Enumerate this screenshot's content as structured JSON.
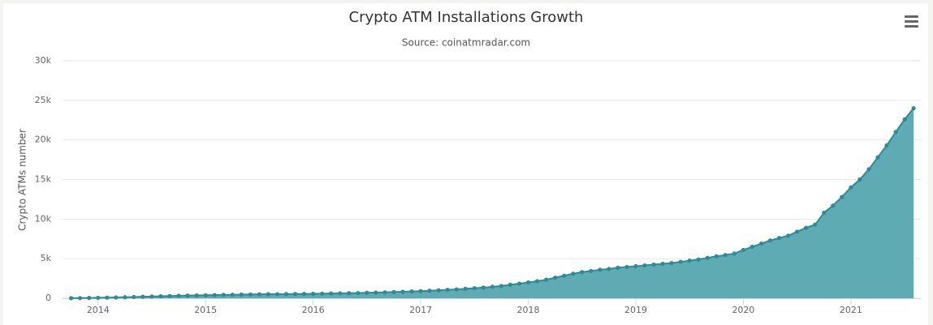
{
  "chart_data": {
    "type": "area",
    "title": "Crypto ATM Installations Growth",
    "subtitle": "Source: coinatmradar.com",
    "y_label": "Crypto ATMs number",
    "x": [
      2013.75,
      2013.833,
      2013.917,
      2014,
      2014.083,
      2014.167,
      2014.25,
      2014.333,
      2014.417,
      2014.5,
      2014.583,
      2014.667,
      2014.75,
      2014.833,
      2014.917,
      2015,
      2015.083,
      2015.167,
      2015.25,
      2015.333,
      2015.417,
      2015.5,
      2015.583,
      2015.667,
      2015.75,
      2015.833,
      2015.917,
      2016,
      2016.083,
      2016.167,
      2016.25,
      2016.333,
      2016.417,
      2016.5,
      2016.583,
      2016.667,
      2016.75,
      2016.833,
      2016.917,
      2017,
      2017.083,
      2017.167,
      2017.25,
      2017.333,
      2017.417,
      2017.5,
      2017.583,
      2017.667,
      2017.75,
      2017.833,
      2017.917,
      2018,
      2018.083,
      2018.167,
      2018.25,
      2018.333,
      2018.417,
      2018.5,
      2018.583,
      2018.667,
      2018.75,
      2018.833,
      2018.917,
      2019,
      2019.083,
      2019.167,
      2019.25,
      2019.333,
      2019.417,
      2019.5,
      2019.583,
      2019.667,
      2019.75,
      2019.833,
      2019.917,
      2020,
      2020.083,
      2020.167,
      2020.25,
      2020.333,
      2020.417,
      2020.5,
      2020.583,
      2020.667,
      2020.75,
      2020.833,
      2020.917,
      2021,
      2021.083,
      2021.167,
      2021.25,
      2021.333,
      2021.417,
      2021.5,
      2021.583
    ],
    "series": [
      {
        "name": "Crypto ATMs",
        "color": "#2e8b95",
        "fill": "#5eabb4",
        "values": [
          10,
          20,
          40,
          60,
          80,
          100,
          130,
          160,
          190,
          220,
          250,
          280,
          310,
          340,
          360,
          380,
          400,
          420,
          440,
          460,
          480,
          500,
          510,
          520,
          530,
          540,
          550,
          560,
          580,
          600,
          620,
          640,
          660,
          690,
          720,
          750,
          780,
          820,
          860,
          900,
          950,
          1000,
          1060,
          1120,
          1190,
          1270,
          1350,
          1450,
          1550,
          1700,
          1850,
          2000,
          2150,
          2350,
          2600,
          2850,
          3100,
          3300,
          3450,
          3600,
          3700,
          3850,
          3950,
          4050,
          4150,
          4250,
          4350,
          4450,
          4600,
          4750,
          4900,
          5100,
          5300,
          5450,
          5650,
          6100,
          6500,
          6900,
          7300,
          7600,
          7900,
          8400,
          8900,
          9300,
          10800,
          11700,
          12800,
          14000,
          15000,
          16300,
          17800,
          19300,
          21000,
          22600,
          24000
        ]
      }
    ],
    "xlim": [
      2013.67,
      2021.65
    ],
    "xticks": [
      2014,
      2015,
      2016,
      2017,
      2018,
      2019,
      2020,
      2021
    ],
    "ylim": [
      0,
      30000
    ],
    "yticks": [
      0,
      {
        "value": 5000,
        "label": "5k"
      },
      {
        "value": 10000,
        "label": "10k"
      },
      {
        "value": 15000,
        "label": "15k"
      },
      {
        "value": 20000,
        "label": "20k"
      },
      {
        "value": 25000,
        "label": "25k"
      },
      {
        "value": 30000,
        "label": "30k"
      }
    ],
    "grid": true
  }
}
